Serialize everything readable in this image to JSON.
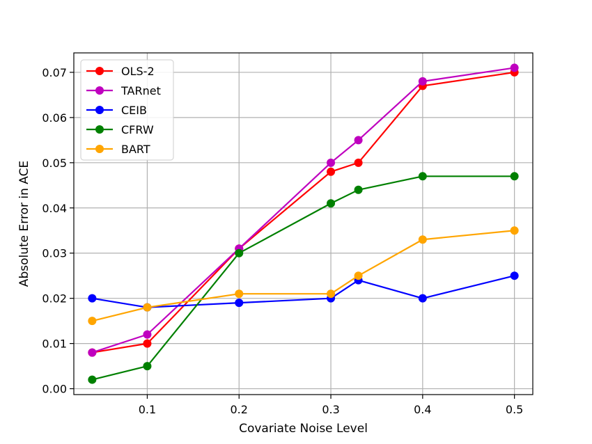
{
  "chart_data": {
    "type": "line",
    "title": "",
    "xlabel": "Covariate Noise Level",
    "ylabel": "Absolute Error in ACE",
    "xlim": [
      0.02,
      0.52
    ],
    "ylim": [
      -0.0013,
      0.0743
    ],
    "xticks": [
      0.1,
      0.2,
      0.3,
      0.4,
      0.5
    ],
    "xtick_labels": [
      "0.1",
      "0.2",
      "0.3",
      "0.4",
      "0.5"
    ],
    "yticks": [
      0.0,
      0.01,
      0.02,
      0.03,
      0.04,
      0.05,
      0.06,
      0.07
    ],
    "ytick_labels": [
      "0.00",
      "0.01",
      "0.02",
      "0.03",
      "0.04",
      "0.05",
      "0.06",
      "0.07"
    ],
    "grid": true,
    "legend_position": "top-left",
    "x": [
      0.04,
      0.1,
      0.2,
      0.3,
      0.33,
      0.4,
      0.5
    ],
    "series": [
      {
        "name": "OLS-2",
        "color": "#ff0000",
        "values": [
          0.008,
          0.01,
          0.031,
          0.048,
          0.05,
          0.067,
          0.07
        ]
      },
      {
        "name": "TARnet",
        "color": "#bf00bf",
        "values": [
          0.008,
          0.012,
          0.031,
          0.05,
          0.055,
          0.068,
          0.071
        ]
      },
      {
        "name": "CEIB",
        "color": "#0000ff",
        "values": [
          0.02,
          0.018,
          0.019,
          0.02,
          0.024,
          0.02,
          0.025
        ]
      },
      {
        "name": "CFRW",
        "color": "#008000",
        "values": [
          0.002,
          0.005,
          0.03,
          0.041,
          0.044,
          0.047,
          0.047
        ]
      },
      {
        "name": "BART",
        "color": "#ffa500",
        "values": [
          0.015,
          0.018,
          0.021,
          0.021,
          0.025,
          0.033,
          0.035
        ]
      }
    ]
  }
}
